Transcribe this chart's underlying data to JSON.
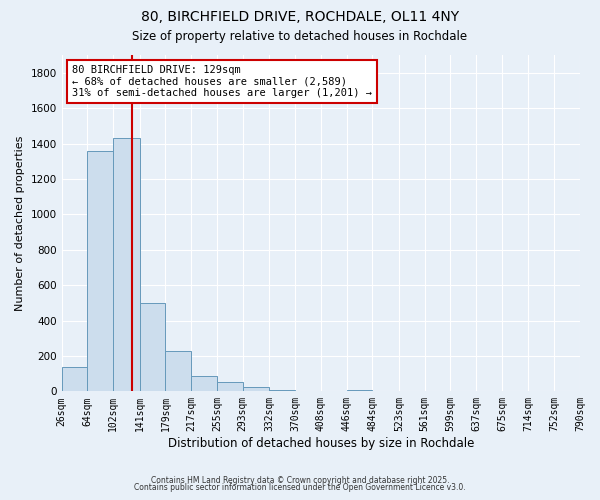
{
  "title": "80, BIRCHFIELD DRIVE, ROCHDALE, OL11 4NY",
  "subtitle": "Size of property relative to detached houses in Rochdale",
  "xlabel": "Distribution of detached houses by size in Rochdale",
  "ylabel": "Number of detached properties",
  "bar_color": "#ccdded",
  "bar_edge_color": "#6699bb",
  "background_color": "#e8f0f8",
  "grid_color": "#ffffff",
  "vline_x": 129,
  "vline_color": "#cc0000",
  "annotation_title": "80 BIRCHFIELD DRIVE: 129sqm",
  "annotation_line1": "← 68% of detached houses are smaller (2,589)",
  "annotation_line2": "31% of semi-detached houses are larger (1,201) →",
  "annotation_box_color": "#ffffff",
  "annotation_box_edge": "#cc0000",
  "bin_edges": [
    26,
    64,
    102,
    141,
    179,
    217,
    255,
    293,
    332,
    370,
    408,
    446,
    484,
    523,
    561,
    599,
    637,
    675,
    714,
    752,
    790
  ],
  "bar_heights": [
    140,
    1360,
    1430,
    500,
    230,
    85,
    55,
    25,
    10,
    0,
    0,
    10,
    0,
    0,
    0,
    0,
    0,
    0,
    0,
    0
  ],
  "ylim": [
    0,
    1900
  ],
  "yticks": [
    0,
    200,
    400,
    600,
    800,
    1000,
    1200,
    1400,
    1600,
    1800
  ],
  "footnote1": "Contains HM Land Registry data © Crown copyright and database right 2025.",
  "footnote2": "Contains public sector information licensed under the Open Government Licence v3.0."
}
